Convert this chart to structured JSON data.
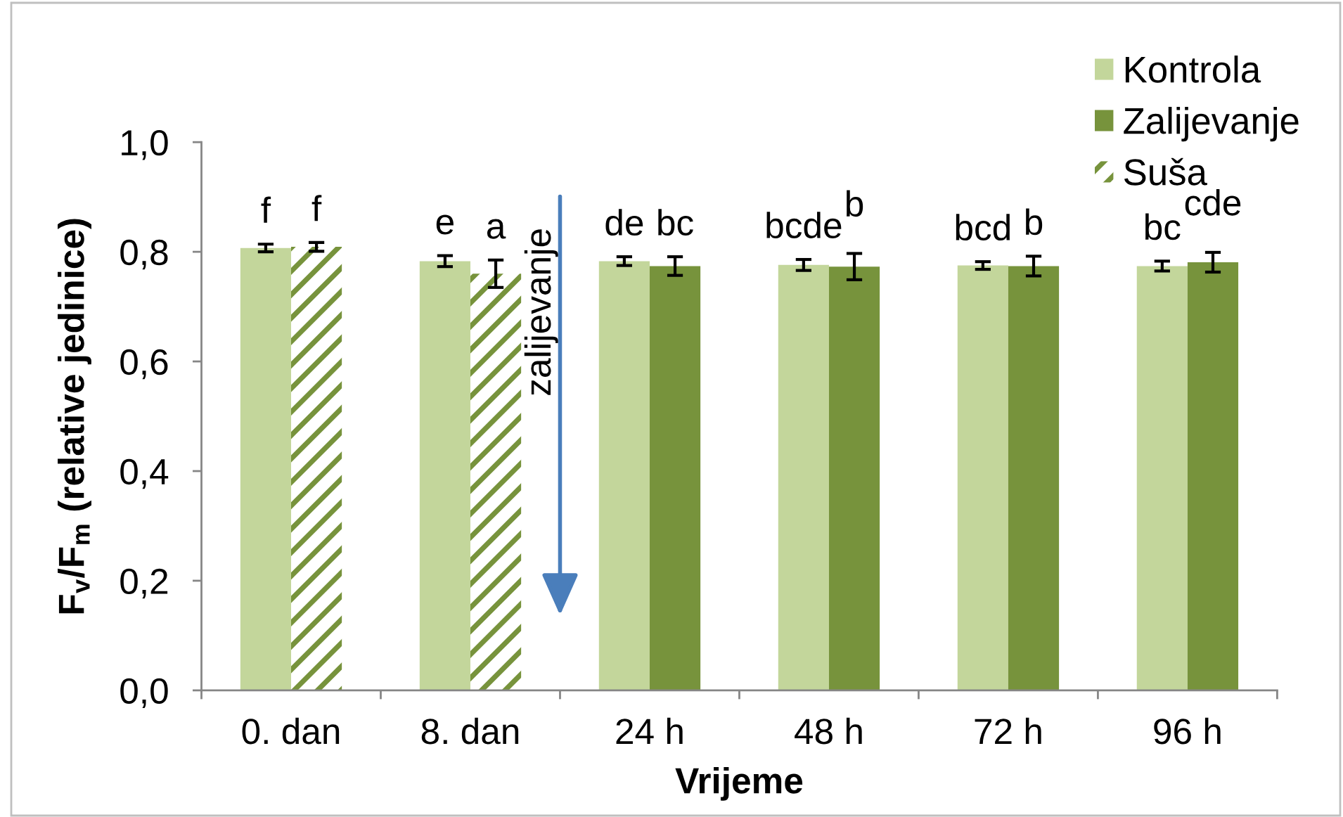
{
  "chart_data": {
    "type": "bar",
    "xlabel": "Vrijeme",
    "ylabel": "F$_{v}$/F$_{m}$ (relative jedinice)",
    "categories": [
      "0. dan",
      "8. dan",
      "24 h",
      "48 h",
      "72 h",
      "96 h"
    ],
    "series": [
      {
        "name": "Kontrola",
        "color": "#c3d69b",
        "values": [
          0.807,
          0.783,
          0.783,
          0.776,
          0.775,
          0.774
        ],
        "errors": [
          0.007,
          0.01,
          0.008,
          0.01,
          0.007,
          0.009
        ],
        "value_labels": [
          "f",
          "e",
          "de",
          "bcde",
          "bcd",
          "bc"
        ]
      },
      {
        "name": "Zalijevanje",
        "color": "#77933c",
        "values": [
          null,
          null,
          0.774,
          0.773,
          0.774,
          0.781
        ],
        "errors": [
          null,
          null,
          0.017,
          0.024,
          0.018,
          0.018
        ],
        "value_labels": [
          null,
          null,
          "bc",
          "b",
          "b",
          "cde"
        ]
      },
      {
        "name": "Suša",
        "color": "#77933c",
        "values": [
          0.809,
          0.76,
          null,
          null,
          null,
          null
        ],
        "errors": [
          0.008,
          0.025,
          null,
          null,
          null,
          null
        ],
        "value_labels": [
          "f",
          "a",
          null,
          null,
          null,
          null
        ]
      }
    ],
    "ylim": [
      0,
      1
    ],
    "yticks": [
      {
        "value": 0,
        "label": "0,0"
      },
      {
        "value": 0.2,
        "label": "0,2"
      },
      {
        "value": 0.4,
        "label": "0,4"
      },
      {
        "value": 0.6,
        "label": "0,6"
      },
      {
        "value": 0.8,
        "label": "0,8"
      },
      {
        "value": 1.0,
        "label": "1,0"
      }
    ],
    "grid": false,
    "legend": "top right",
    "annotations": [
      "zalijevanje"
    ]
  }
}
